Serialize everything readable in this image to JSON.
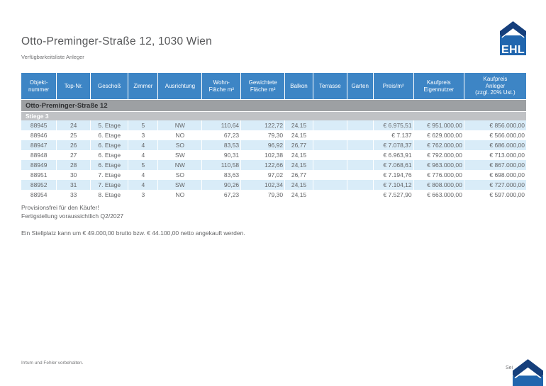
{
  "page": {
    "title": "Otto-Preminger-Straße 12, 1030 Wien",
    "subtitle": "Verfügbarkeitsliste Anleger"
  },
  "logo": {
    "text": "EHL"
  },
  "table": {
    "group_header": "Otto-Preminger-Straße 12",
    "subgroup_header": "Stiege 3",
    "columns": [
      {
        "label": "Objekt-\nnummer",
        "align": "center",
        "width": "7.0%"
      },
      {
        "label": "Top-Nr.",
        "align": "center",
        "width": "6.7%"
      },
      {
        "label": "Geschoß",
        "align": "center",
        "width": "7.5%"
      },
      {
        "label": "Zimmer",
        "align": "center",
        "width": "5.9%"
      },
      {
        "label": "Ausrichtung",
        "align": "center",
        "width": "8.7%"
      },
      {
        "label": "Wohn-\nFläche m²",
        "align": "right-pad",
        "width": "7.7%"
      },
      {
        "label": "Gewichtete\nFläche m²",
        "align": "right-pad",
        "width": "8.7%"
      },
      {
        "label": "Balkon",
        "align": "center",
        "width": "5.6%"
      },
      {
        "label": "Terrasse",
        "align": "center",
        "width": "6.7%"
      },
      {
        "label": "Garten",
        "align": "center",
        "width": "5.2%"
      },
      {
        "label": "Preis/m²",
        "align": "right",
        "width": "8.0%"
      },
      {
        "label": "Kaufpreis\nEigennutzer",
        "align": "right",
        "width": "10.0%"
      },
      {
        "label": "Kaufpreis\nAnleger\n(zzgl. 20% Ust.)",
        "align": "right",
        "width": "12.3%"
      }
    ],
    "rows": [
      [
        "88945",
        "24",
        "5. Etage",
        "5",
        "NW",
        "110,64",
        "122,72",
        "24,15",
        "",
        "",
        "€ 6.975,51",
        "€ 951.000,00",
        "€ 856.000,00"
      ],
      [
        "88946",
        "25",
        "6. Etage",
        "3",
        "NO",
        "67,23",
        "79,30",
        "24,15",
        "",
        "",
        "€ 7.137",
        "€ 629.000,00",
        "€ 566.000,00"
      ],
      [
        "88947",
        "26",
        "6. Etage",
        "4",
        "SO",
        "83,53",
        "96,92",
        "26,77",
        "",
        "",
        "€ 7.078,37",
        "€ 762.000,00",
        "€ 686.000,00"
      ],
      [
        "88948",
        "27",
        "6. Etage",
        "4",
        "SW",
        "90,31",
        "102,38",
        "24,15",
        "",
        "",
        "€ 6.963,91",
        "€ 792.000,00",
        "€ 713.000,00"
      ],
      [
        "88949",
        "28",
        "6. Etage",
        "5",
        "NW",
        "110,58",
        "122,66",
        "24,15",
        "",
        "",
        "€ 7.068,61",
        "€ 963.000,00",
        "€ 867.000,00"
      ],
      [
        "88951",
        "30",
        "7. Etage",
        "4",
        "SO",
        "83,63",
        "97,02",
        "26,77",
        "",
        "",
        "€ 7.194,76",
        "€ 776.000,00",
        "€ 698.000,00"
      ],
      [
        "88952",
        "31",
        "7. Etage",
        "4",
        "SW",
        "90,26",
        "102,34",
        "24,15",
        "",
        "",
        "€ 7.104,12",
        "€ 808.000,00",
        "€ 727.000,00"
      ],
      [
        "88954",
        "33",
        "8. Etage",
        "3",
        "NO",
        "67,23",
        "79,30",
        "24,15",
        "",
        "",
        "€ 7.527,90",
        "€ 663.000,00",
        "€ 597.000,00"
      ]
    ]
  },
  "notes": {
    "line1": "Provisionsfrei für den Käufer!",
    "line2": "Fertigstellung voraussichtlich Q2/2027",
    "parking": "Ein Stellplatz kann um € 49.000,00 brutto bzw. € 44.100,00 netto angekauft werden."
  },
  "footer": {
    "left": "Irrtum und Fehler vorbehalten.",
    "page_label": "Sei"
  },
  "colors": {
    "header_blue": "#3d85c5",
    "row_alt_blue": "#d9ecf8",
    "group_band_gray": "#9da0a3",
    "sub_band_gray": "#c0c2c5",
    "logo_square_blue": "#2166ae",
    "logo_roof_navy": "#153f7c"
  }
}
